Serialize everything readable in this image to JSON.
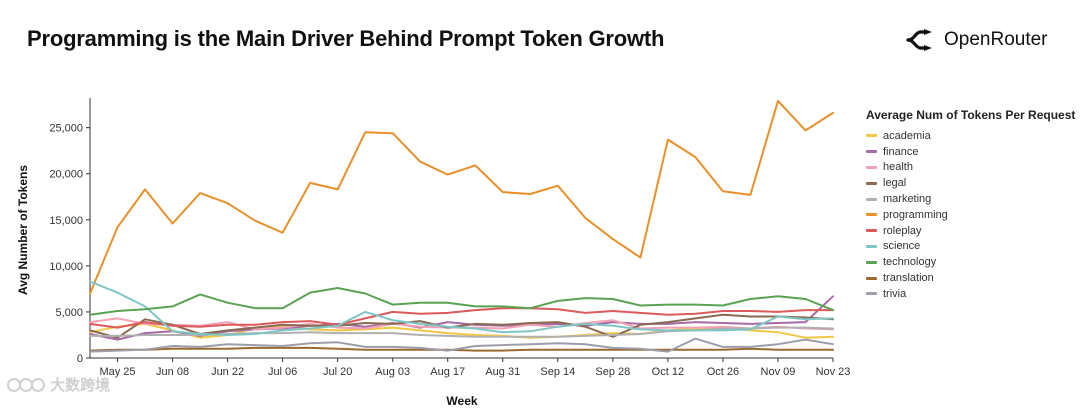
{
  "header": {
    "title": "Programming is the Main Driver Behind Prompt Token Growth",
    "brand": "OpenRouter"
  },
  "watermark": {
    "text": "大数跨境"
  },
  "chart_data": {
    "type": "line",
    "title": "Programming is the Main Driver Behind Prompt Token Growth",
    "xlabel": "Week",
    "ylabel": "Avg Number of Tokens",
    "ylim": [
      0,
      28000
    ],
    "yticks": [
      0,
      5000,
      10000,
      15000,
      20000,
      25000
    ],
    "ytick_labels": [
      "0",
      "5,000",
      "10,000",
      "15,000",
      "20,000",
      "25,000"
    ],
    "x_tick_labels": [
      "May 25",
      "Jun 08",
      "Jun 22",
      "Jul 06",
      "Jul 20",
      "Aug 03",
      "Aug 17",
      "Aug 31",
      "Sep 14",
      "Sep 28",
      "Oct 12",
      "Oct 26",
      "Nov 09",
      "Nov 23"
    ],
    "x_tick_indices": [
      1,
      3,
      5,
      7,
      9,
      11,
      13,
      15,
      17,
      19,
      21,
      23,
      25,
      27
    ],
    "num_points": 28,
    "legend_title": "Average Num of Tokens Per Request",
    "grid": false,
    "series": [
      {
        "name": "academia",
        "color": "#f2c744",
        "values": [
          2800,
          3400,
          3700,
          3000,
          2200,
          2500,
          3200,
          3500,
          3100,
          3000,
          3100,
          3300,
          3000,
          2700,
          2500,
          2400,
          2200,
          2300,
          2500,
          2700,
          2600,
          3000,
          3200,
          3300,
          3000,
          2800,
          2200,
          2300
        ]
      },
      {
        "name": "finance",
        "color": "#a66aa8",
        "values": [
          2600,
          2000,
          2700,
          2900,
          2400,
          2900,
          3100,
          3200,
          3500,
          3700,
          3400,
          3800,
          3300,
          3900,
          3600,
          3500,
          3600,
          3700,
          3500,
          3900,
          3700,
          3700,
          3900,
          3800,
          3700,
          3800,
          3900,
          6700
        ]
      },
      {
        "name": "health",
        "color": "#f0a3b5",
        "values": [
          3900,
          4300,
          3700,
          3600,
          3500,
          3900,
          3100,
          3300,
          3700,
          3300,
          3200,
          3700,
          3400,
          3300,
          3300,
          3200,
          3600,
          3400,
          3800,
          4100,
          3200,
          3300,
          3300,
          3400,
          3200,
          3400,
          3200,
          3100
        ]
      },
      {
        "name": "legal",
        "color": "#8a6a52",
        "values": [
          3000,
          2200,
          4200,
          3600,
          2600,
          3000,
          3300,
          3600,
          3500,
          3500,
          3800,
          3700,
          4000,
          3300,
          3700,
          3600,
          3800,
          3900,
          3400,
          2300,
          3600,
          3900,
          4300,
          4700,
          4500,
          4500,
          4400,
          4200
        ]
      },
      {
        "name": "marketing",
        "color": "#b0b0b0",
        "values": [
          2400,
          2400,
          2500,
          2500,
          2500,
          2600,
          2700,
          2700,
          2800,
          2700,
          2700,
          2700,
          2500,
          2400,
          2300,
          2300,
          2300,
          2300,
          2400,
          2500,
          2600,
          2900,
          3000,
          3200,
          3200,
          3300,
          3300,
          3200
        ]
      },
      {
        "name": "programming",
        "color": "#e8902a",
        "values": [
          7000,
          14200,
          18300,
          14600,
          17900,
          16800,
          14900,
          13600,
          19000,
          18300,
          24500,
          24400,
          21300,
          19900,
          20900,
          18000,
          17800,
          18700,
          15200,
          12900,
          10900,
          23700,
          21800,
          18100,
          17700,
          27900,
          24700,
          26600
        ]
      },
      {
        "name": "roleplay",
        "color": "#dc5a5a",
        "values": [
          3700,
          3300,
          3900,
          3500,
          3400,
          3600,
          3600,
          3900,
          4000,
          3600,
          4300,
          5000,
          4800,
          4900,
          5200,
          5400,
          5400,
          5300,
          4900,
          5100,
          4900,
          4700,
          4800,
          5100,
          5100,
          5000,
          5200,
          5200
        ]
      },
      {
        "name": "science",
        "color": "#7ec6c6",
        "values": [
          8300,
          7100,
          5600,
          2900,
          2600,
          2500,
          2600,
          3000,
          3200,
          3500,
          5000,
          4100,
          3700,
          3400,
          3200,
          2800,
          2900,
          3400,
          3700,
          3500,
          3100,
          3000,
          3000,
          3000,
          3100,
          4500,
          4200,
          4300
        ]
      },
      {
        "name": "technology",
        "color": "#5aa353",
        "values": [
          4700,
          5100,
          5300,
          5600,
          6900,
          6000,
          5400,
          5400,
          7100,
          7600,
          7000,
          5800,
          6000,
          6000,
          5600,
          5600,
          5400,
          6200,
          6500,
          6400,
          5700,
          5800,
          5800,
          5700,
          6400,
          6700,
          6400,
          5200
        ]
      },
      {
        "name": "translation",
        "color": "#9a6a30",
        "values": [
          800,
          900,
          900,
          1000,
          1000,
          1000,
          1100,
          1100,
          1100,
          1000,
          900,
          900,
          900,
          900,
          800,
          800,
          900,
          900,
          900,
          900,
          900,
          900,
          900,
          900,
          1000,
          900,
          900,
          900
        ]
      },
      {
        "name": "trivia",
        "color": "#9d9dab",
        "values": [
          700,
          800,
          900,
          1300,
          1200,
          1500,
          1400,
          1300,
          1600,
          1700,
          1200,
          1200,
          1100,
          800,
          1300,
          1400,
          1500,
          1600,
          1500,
          1100,
          1000,
          700,
          2100,
          1200,
          1200,
          1500,
          2000,
          1500
        ]
      }
    ]
  }
}
